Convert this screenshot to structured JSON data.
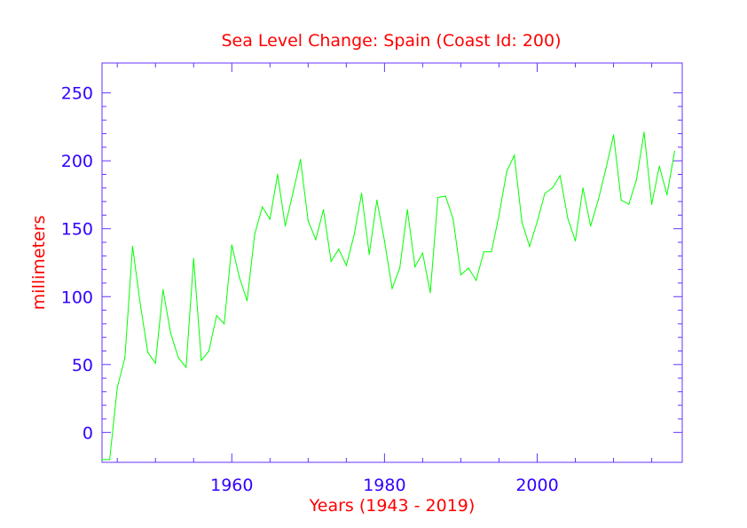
{
  "chart_data": {
    "type": "line",
    "title": "Sea Level Change: Spain (Coast Id: 200)",
    "xlabel": "Years (1943 - 2019)",
    "ylabel": "millimeters",
    "xlim": [
      1943,
      2019
    ],
    "ylim": [
      -22,
      272
    ],
    "xticks": [
      1960,
      1980,
      2000
    ],
    "yticks": [
      0,
      50,
      100,
      150,
      200,
      250
    ],
    "x": [
      1943,
      1944,
      1945,
      1946,
      1947,
      1948,
      1949,
      1950,
      1951,
      1952,
      1953,
      1954,
      1955,
      1956,
      1957,
      1958,
      1959,
      1960,
      1961,
      1962,
      1963,
      1964,
      1965,
      1966,
      1967,
      1968,
      1969,
      1970,
      1971,
      1972,
      1973,
      1974,
      1975,
      1976,
      1977,
      1978,
      1979,
      1980,
      1981,
      1982,
      1983,
      1984,
      1985,
      1986,
      1987,
      1988,
      1989,
      1990,
      1991,
      1992,
      1993,
      1994,
      1995,
      1996,
      1997,
      1998,
      1999,
      2000,
      2001,
      2002,
      2003,
      2004,
      2005,
      2006,
      2007,
      2008,
      2009,
      2010,
      2011,
      2012,
      2013,
      2014,
      2015,
      2016,
      2017,
      2018
    ],
    "values": [
      -20,
      -20,
      33,
      55,
      137,
      95,
      59,
      51,
      105,
      73,
      55,
      48,
      128,
      53,
      60,
      86,
      80,
      138,
      114,
      97,
      146,
      166,
      157,
      190,
      152,
      176,
      201,
      156,
      142,
      164,
      126,
      135,
      123,
      145,
      176,
      131,
      171,
      141,
      106,
      121,
      164,
      122,
      132,
      103,
      173,
      174,
      157,
      116,
      121,
      112,
      133,
      133,
      160,
      192,
      204,
      155,
      137,
      155,
      176,
      180,
      189,
      158,
      141,
      180,
      152,
      171,
      194,
      219,
      171,
      168,
      186,
      221,
      168,
      196,
      175,
      207
    ],
    "series": [
      {
        "name": "Spain (Coast Id: 200)",
        "color": "#00ff00"
      }
    ],
    "colors": {
      "axis": "#6633ff",
      "tick_text": "#3300ff",
      "title": "#ff0000",
      "line": "#00ff00"
    }
  }
}
